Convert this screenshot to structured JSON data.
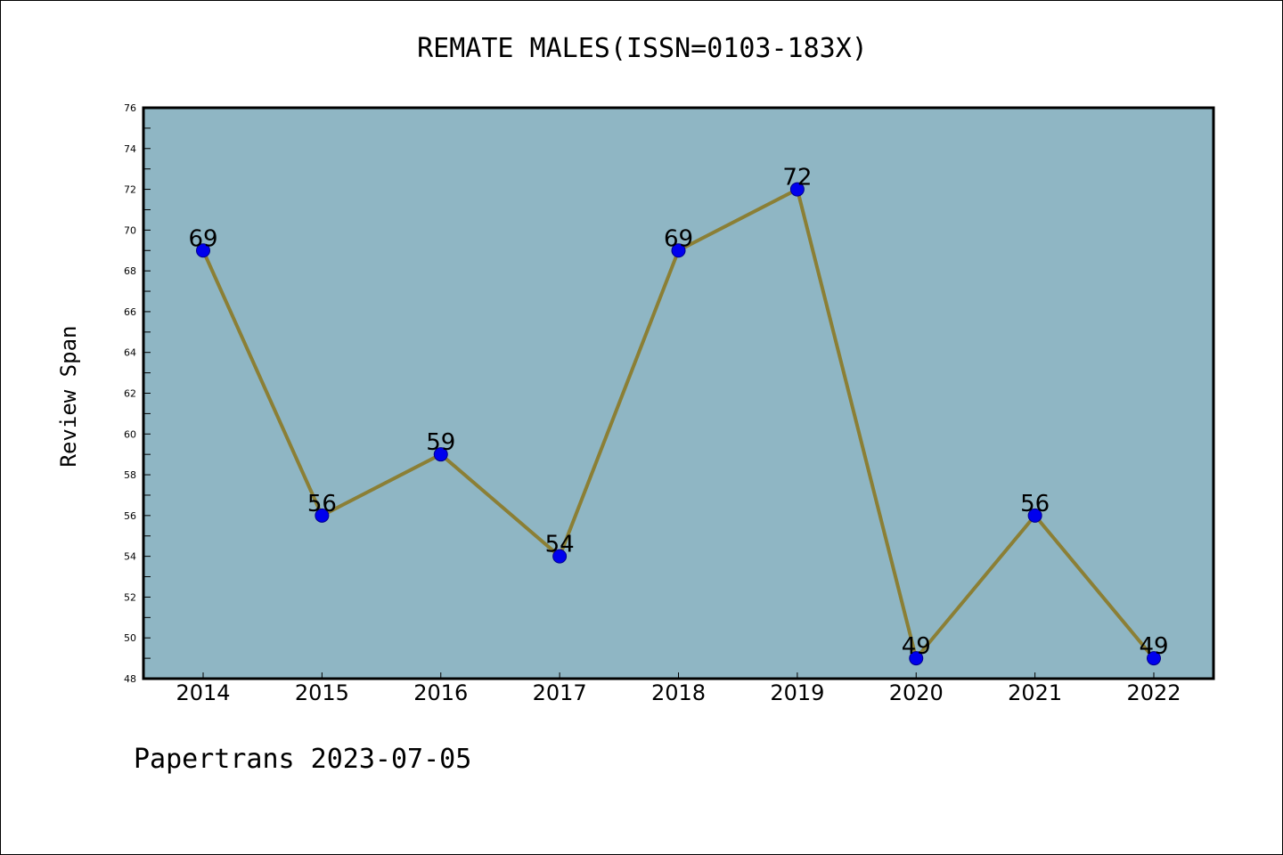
{
  "chart_data": {
    "type": "line",
    "title": "REMATE MALES(ISSN=0103-183X)",
    "xlabel": "",
    "ylabel": "Review Span",
    "categories": [
      "2014",
      "2015",
      "2016",
      "2017",
      "2018",
      "2019",
      "2020",
      "2021",
      "2022"
    ],
    "series": [
      {
        "values": [
          69,
          56,
          59,
          54,
          69,
          72,
          49,
          56,
          49
        ]
      }
    ],
    "ylim": [
      48,
      76
    ],
    "y_ticks": [
      48,
      50,
      52,
      54,
      56,
      58,
      60,
      62,
      64,
      66,
      68,
      70,
      72,
      74,
      76
    ],
    "grid": false,
    "legend": "none",
    "data_labels": true,
    "colors": {
      "plot_background": "#8fb6c4",
      "line": "#8b7f35",
      "marker": "#0000ee",
      "axes": "#000000"
    }
  },
  "footer": {
    "note": "Papertrans 2023-07-05"
  }
}
